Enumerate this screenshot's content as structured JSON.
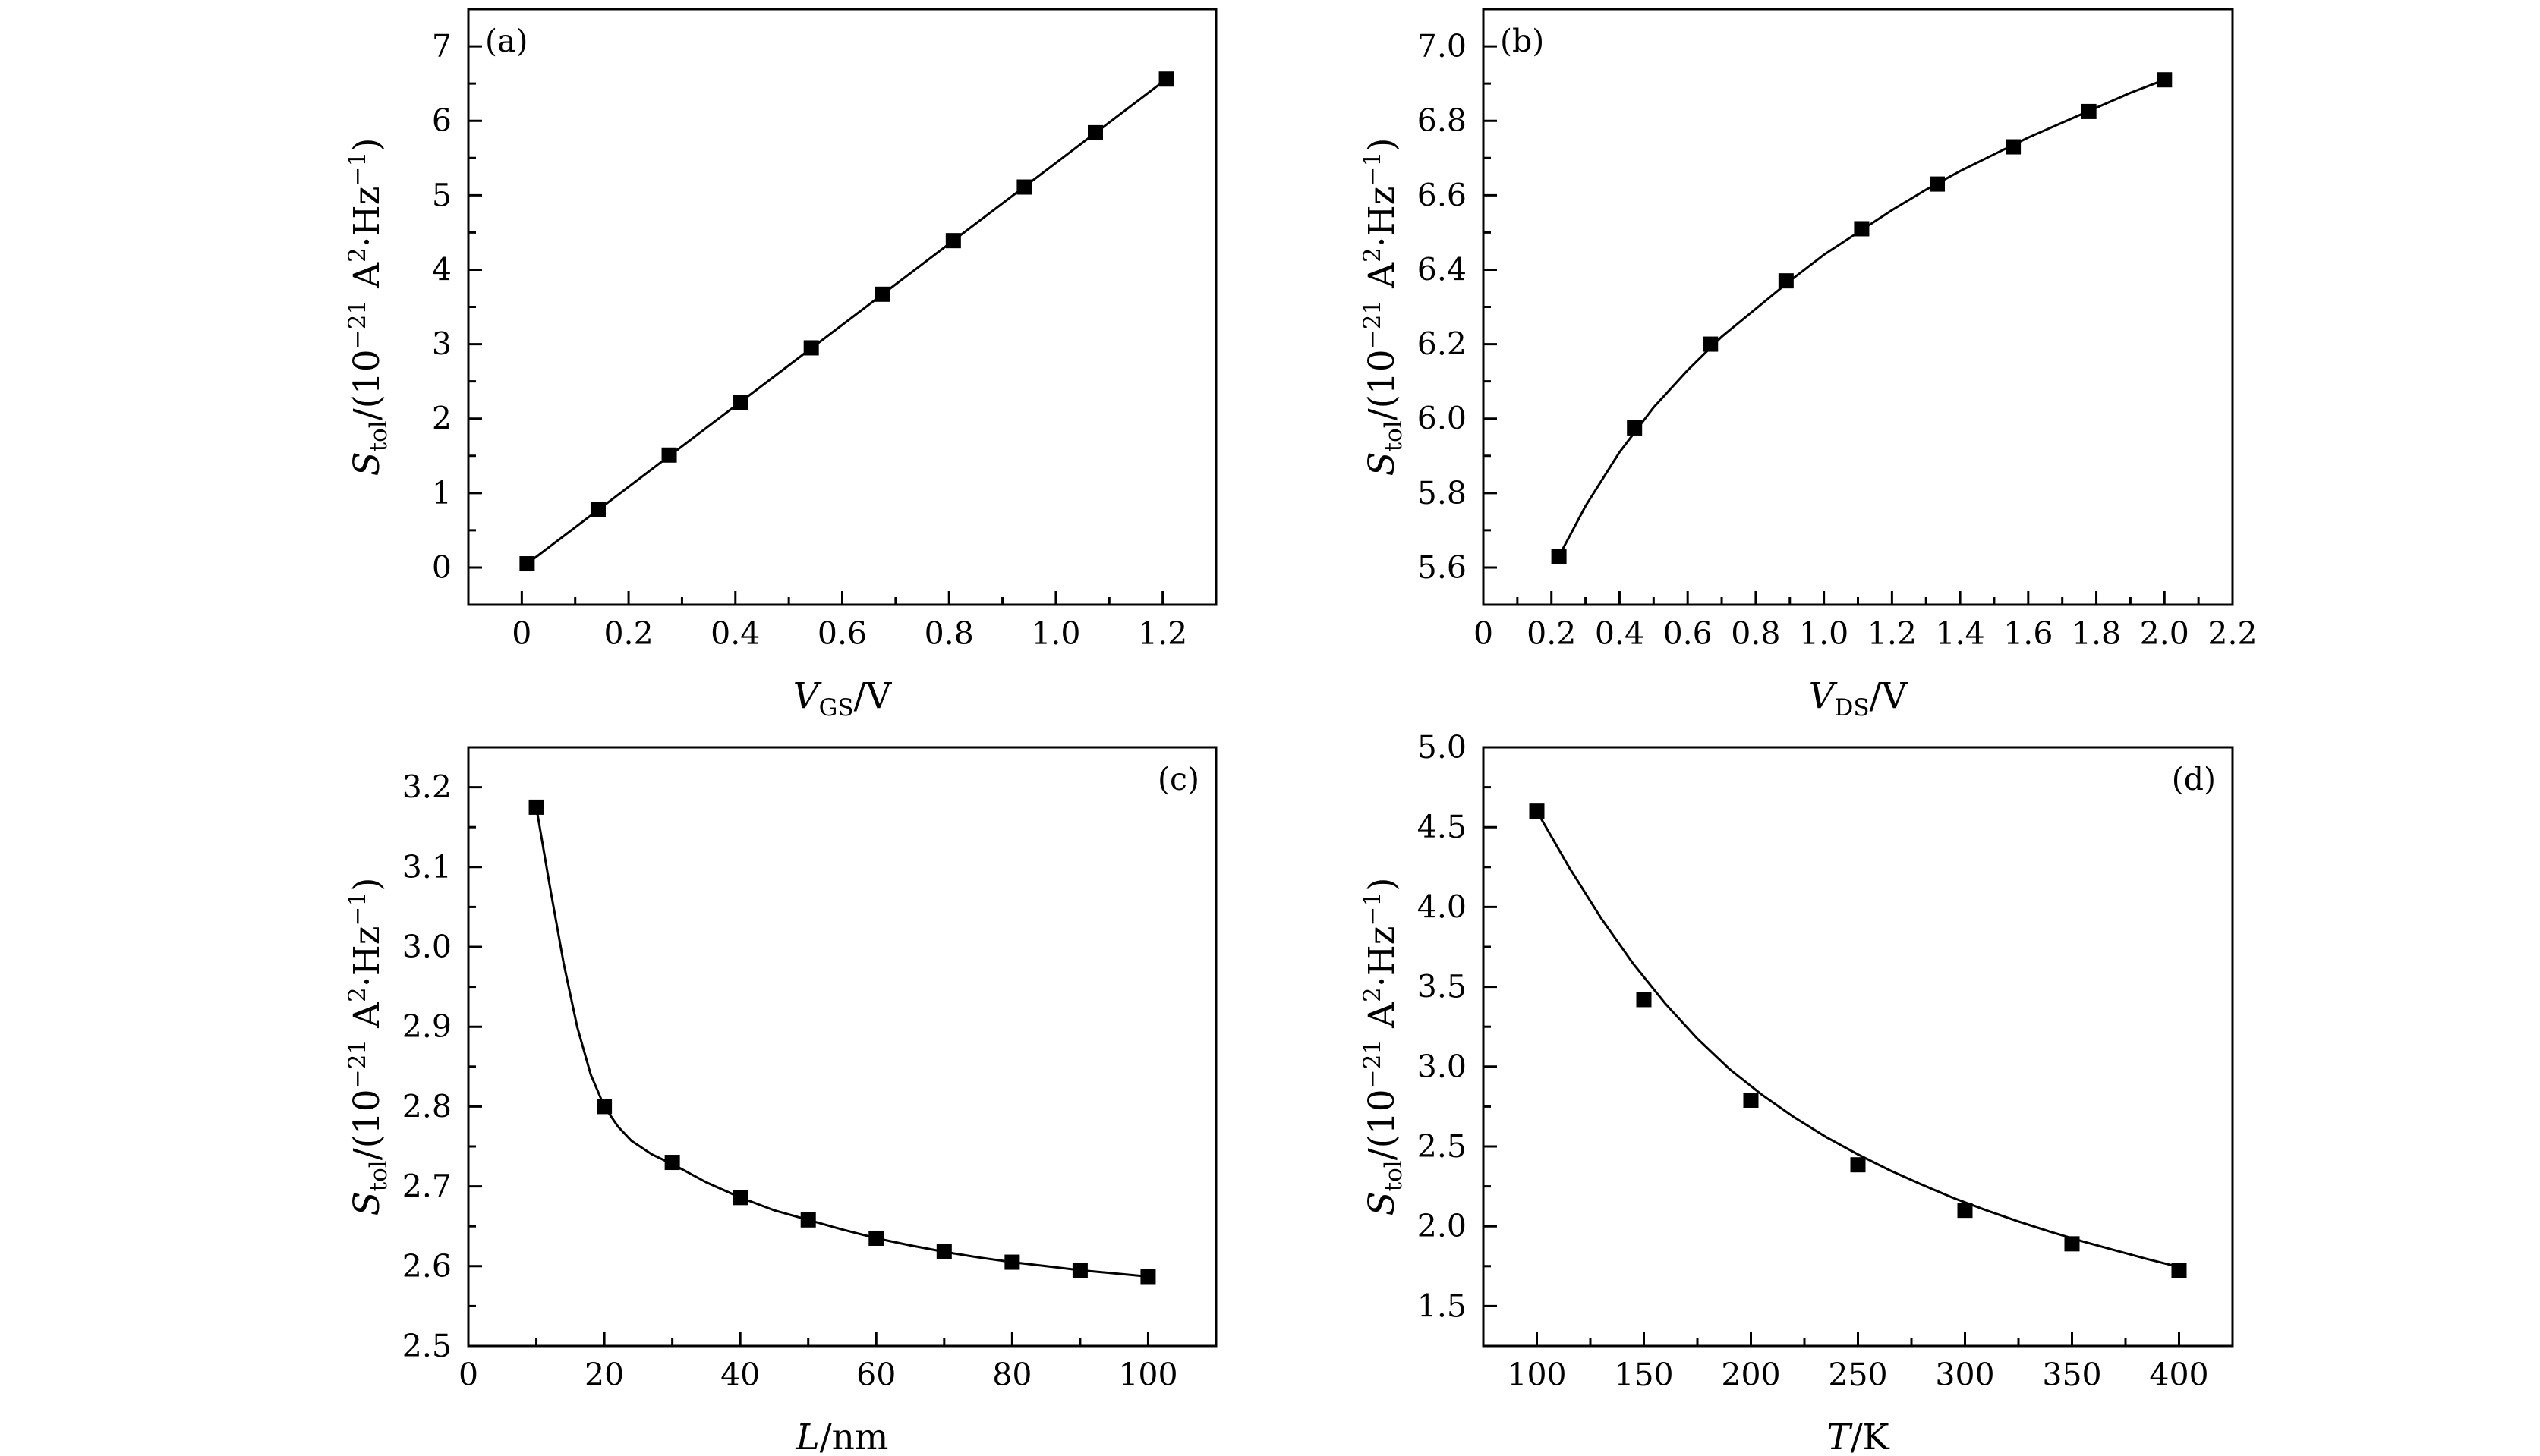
{
  "figure": {
    "y_axis_title": {
      "symbol": "S",
      "subscript": "tol",
      "before_sup": "/(10",
      "superscript": "−21",
      "after_sup": " A",
      "sup2": "2",
      "middle": "·Hz",
      "sup3": "−1",
      "end": ")"
    }
  },
  "chart_data": [
    {
      "type": "scatter",
      "panel_label": "(a)",
      "xlabel": {
        "symbol": "V",
        "subscript": "GS",
        "unit": "/V"
      },
      "xlim": [
        -0.1,
        1.3
      ],
      "ylim": [
        -0.5,
        7.5
      ],
      "xticks": [
        0,
        0.2,
        0.4,
        0.6,
        0.8,
        1.0,
        1.2
      ],
      "xtick_labels": [
        "0",
        "0.2",
        "0.4",
        "0.6",
        "0.8",
        "1.0",
        "1.2"
      ],
      "yticks": [
        0,
        1,
        2,
        3,
        4,
        5,
        6,
        7
      ],
      "ytick_labels": [
        "0",
        "1",
        "2",
        "3",
        "4",
        "5",
        "6",
        "7"
      ],
      "label_pos": "top-left",
      "grid": false,
      "series": [
        {
          "x": [
            0.01,
            0.143,
            0.276,
            0.409,
            0.542,
            0.675,
            0.808,
            0.941,
            1.074,
            1.207
          ],
          "y": [
            0.05,
            0.78,
            1.51,
            2.22,
            2.95,
            3.67,
            4.39,
            5.11,
            5.84,
            6.56
          ]
        }
      ],
      "fit": {
        "x": [
          0.01,
          1.207
        ],
        "y": [
          0.05,
          6.56
        ]
      }
    },
    {
      "type": "scatter",
      "panel_label": "(b)",
      "xlabel": {
        "symbol": "V",
        "subscript": "DS",
        "unit": "/V"
      },
      "xlim": [
        0,
        2.2
      ],
      "ylim": [
        5.5,
        7.1
      ],
      "xticks": [
        0,
        0.2,
        0.4,
        0.6,
        0.8,
        1.0,
        1.2,
        1.4,
        1.6,
        1.8,
        2.0,
        2.2
      ],
      "xtick_labels": [
        "0",
        "0.2",
        "0.4",
        "0.6",
        "0.8",
        "1.0",
        "1.2",
        "1.4",
        "1.6",
        "1.8",
        "2.0",
        "2.2"
      ],
      "yticks": [
        5.6,
        5.8,
        6.0,
        6.2,
        6.4,
        6.6,
        6.8,
        7.0
      ],
      "ytick_labels": [
        "5.6",
        "5.8",
        "6.0",
        "6.2",
        "6.4",
        "6.6",
        "6.8",
        "7.0"
      ],
      "label_pos": "top-left",
      "grid": false,
      "series": [
        {
          "x": [
            0.222,
            0.444,
            0.667,
            0.889,
            1.111,
            1.333,
            1.556,
            1.778,
            2.0
          ],
          "y": [
            5.63,
            5.975,
            6.2,
            6.37,
            6.51,
            6.63,
            6.73,
            6.825,
            6.91
          ]
        }
      ],
      "fit": {
        "x": [
          0.222,
          0.3,
          0.4,
          0.5,
          0.6,
          0.7,
          0.8,
          0.9,
          1.0,
          1.1,
          1.2,
          1.3,
          1.4,
          1.5,
          1.6,
          1.7,
          1.8,
          1.9,
          2.0
        ],
        "y": [
          5.63,
          5.765,
          5.91,
          6.03,
          6.13,
          6.22,
          6.295,
          6.37,
          6.44,
          6.5,
          6.56,
          6.615,
          6.665,
          6.71,
          6.755,
          6.795,
          6.835,
          6.875,
          6.91
        ]
      }
    },
    {
      "type": "scatter",
      "panel_label": "(c)",
      "xlabel": {
        "symbol": "L",
        "subscript": "",
        "unit": "/nm"
      },
      "xlim": [
        0,
        110
      ],
      "ylim": [
        2.5,
        3.25
      ],
      "xticks": [
        0,
        20,
        40,
        60,
        80,
        100
      ],
      "xtick_labels": [
        "0",
        "20",
        "40",
        "60",
        "80",
        "100"
      ],
      "yticks": [
        2.5,
        2.6,
        2.7,
        2.8,
        2.9,
        3.0,
        3.1,
        3.2
      ],
      "ytick_labels": [
        "2.5",
        "2.6",
        "2.7",
        "2.8",
        "2.9",
        "3.0",
        "3.1",
        "3.2"
      ],
      "label_pos": "top-right",
      "grid": false,
      "series": [
        {
          "x": [
            10,
            20,
            30,
            40,
            50,
            60,
            70,
            80,
            90,
            100
          ],
          "y": [
            3.175,
            2.8,
            2.73,
            2.686,
            2.658,
            2.635,
            2.618,
            2.605,
            2.595,
            2.587
          ]
        }
      ],
      "fit": {
        "x": [
          10,
          12,
          14,
          16,
          18,
          20,
          22,
          24,
          27,
          30,
          35,
          40,
          45,
          50,
          55,
          60,
          65,
          70,
          75,
          80,
          85,
          90,
          95,
          100
        ],
        "y": [
          3.175,
          3.075,
          2.98,
          2.9,
          2.84,
          2.8,
          2.775,
          2.757,
          2.74,
          2.728,
          2.705,
          2.686,
          2.67,
          2.658,
          2.646,
          2.635,
          2.626,
          2.618,
          2.611,
          2.605,
          2.6,
          2.595,
          2.591,
          2.587
        ]
      }
    },
    {
      "type": "scatter",
      "panel_label": "(d)",
      "xlabel": {
        "symbol": "T",
        "subscript": "",
        "unit": "/K"
      },
      "xlim": [
        75,
        425
      ],
      "ylim": [
        1.25,
        5.0
      ],
      "xticks": [
        100,
        150,
        200,
        250,
        300,
        350,
        400
      ],
      "xtick_labels": [
        "100",
        "150",
        "200",
        "250",
        "300",
        "350",
        "400"
      ],
      "yticks": [
        1.5,
        2.0,
        2.5,
        3.0,
        3.5,
        4.0,
        4.5,
        5.0
      ],
      "ytick_labels": [
        "1.5",
        "2.0",
        "2.5",
        "3.0",
        "3.5",
        "4.0",
        "4.5",
        "5.0"
      ],
      "label_pos": "top-right",
      "grid": false,
      "series": [
        {
          "x": [
            100,
            150,
            200,
            250,
            300,
            350,
            400
          ],
          "y": [
            4.6,
            3.42,
            2.79,
            2.385,
            2.1,
            1.89,
            1.725
          ]
        }
      ],
      "fit": {
        "x": [
          100,
          115,
          130,
          145,
          160,
          175,
          190,
          205,
          220,
          235,
          250,
          265,
          280,
          295,
          310,
          325,
          340,
          355,
          370,
          385,
          400
        ],
        "y": [
          4.6,
          4.25,
          3.93,
          3.645,
          3.395,
          3.175,
          2.985,
          2.825,
          2.685,
          2.56,
          2.45,
          2.35,
          2.26,
          2.175,
          2.1,
          2.03,
          1.965,
          1.905,
          1.85,
          1.795,
          1.745
        ]
      }
    }
  ]
}
